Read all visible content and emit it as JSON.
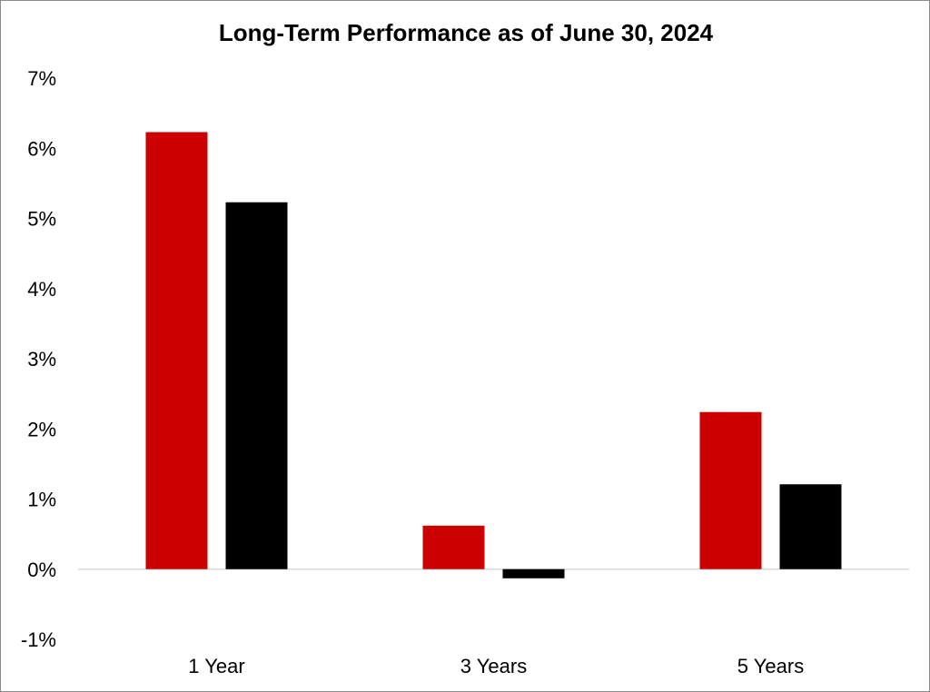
{
  "chart_data": {
    "type": "bar",
    "title": "Long-Term Performance as of June 30, 2024",
    "xlabel": "",
    "ylabel": "",
    "categories": [
      "1 Year",
      "3 Years",
      "5 Years"
    ],
    "series": [
      {
        "color": "#cc0000",
        "values": [
          6.23,
          0.62,
          2.24
        ]
      },
      {
        "color": "#000000",
        "values": [
          5.23,
          -0.13,
          1.21
        ]
      }
    ],
    "ylim": [
      -1,
      7
    ],
    "yticks": [
      -1,
      0,
      1,
      2,
      3,
      4,
      5,
      6,
      7
    ],
    "ytick_labels": [
      "-1%",
      "0%",
      "1%",
      "2%",
      "3%",
      "4%",
      "5%",
      "6%",
      "7%"
    ],
    "grid": false,
    "legend": false,
    "zero_line_color": "#d9d9d9"
  }
}
